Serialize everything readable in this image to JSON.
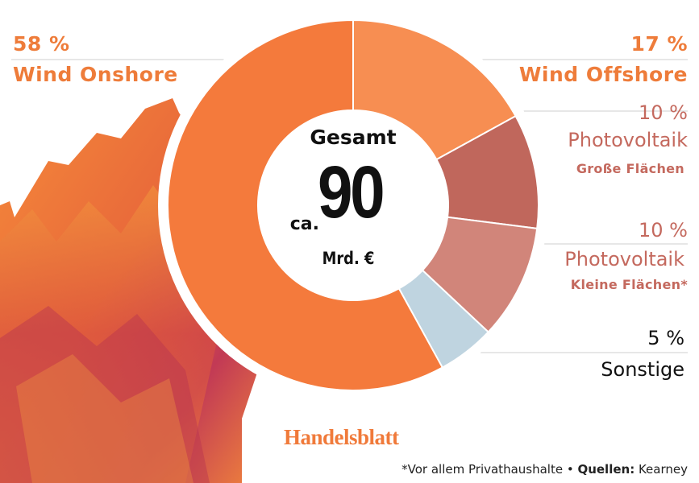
{
  "colors": {
    "onshore": "#f47a3c",
    "offshore": "#f78e52",
    "pv_large": "#c0675c",
    "pv_small": "#d1857a",
    "sonstige": "#bfd4e0",
    "orange_text": "#ee7c3a",
    "rose_text": "#c4695e",
    "dark_text": "#111111"
  },
  "center": {
    "title": "Gesamt",
    "prefix": "ca.",
    "value": "90",
    "unit": "Mrd. €"
  },
  "chart_data": {
    "type": "pie",
    "variant": "donut",
    "slices": [
      {
        "name": "Wind Onshore",
        "value": 58,
        "label": "58 %",
        "color": "#f47a3c"
      },
      {
        "name": "Wind Offshore",
        "value": 17,
        "label": "17 %",
        "color": "#f78e52"
      },
      {
        "name": "Photovoltaik Große Flächen",
        "value": 10,
        "label": "10 %",
        "color": "#c0675c"
      },
      {
        "name": "Photovoltaik Kleine Flächen*",
        "value": 10,
        "label": "10 %",
        "color": "#d1857a"
      },
      {
        "name": "Sonstige",
        "value": 5,
        "label": "5 %",
        "color": "#bfd4e0"
      }
    ],
    "legend": "none"
  },
  "labels": {
    "onshore": {
      "pct": "58 %",
      "name": "Wind Onshore"
    },
    "offshore": {
      "pct": "17 %",
      "name": "Wind Offshore"
    },
    "pv_large": {
      "pct": "10 %",
      "name": "Photovoltaik",
      "sub": "Große Flächen"
    },
    "pv_small": {
      "pct": "10 %",
      "name": "Photovoltaik",
      "sub": "Kleine Flächen*"
    },
    "sonstige": {
      "pct": "5 %",
      "name": "Sonstige"
    }
  },
  "logo": "Handelsblatt",
  "footnote": {
    "note": "*Vor allem Privathaushalte • ",
    "source_label": "Quellen:",
    "source": " Kearney"
  }
}
